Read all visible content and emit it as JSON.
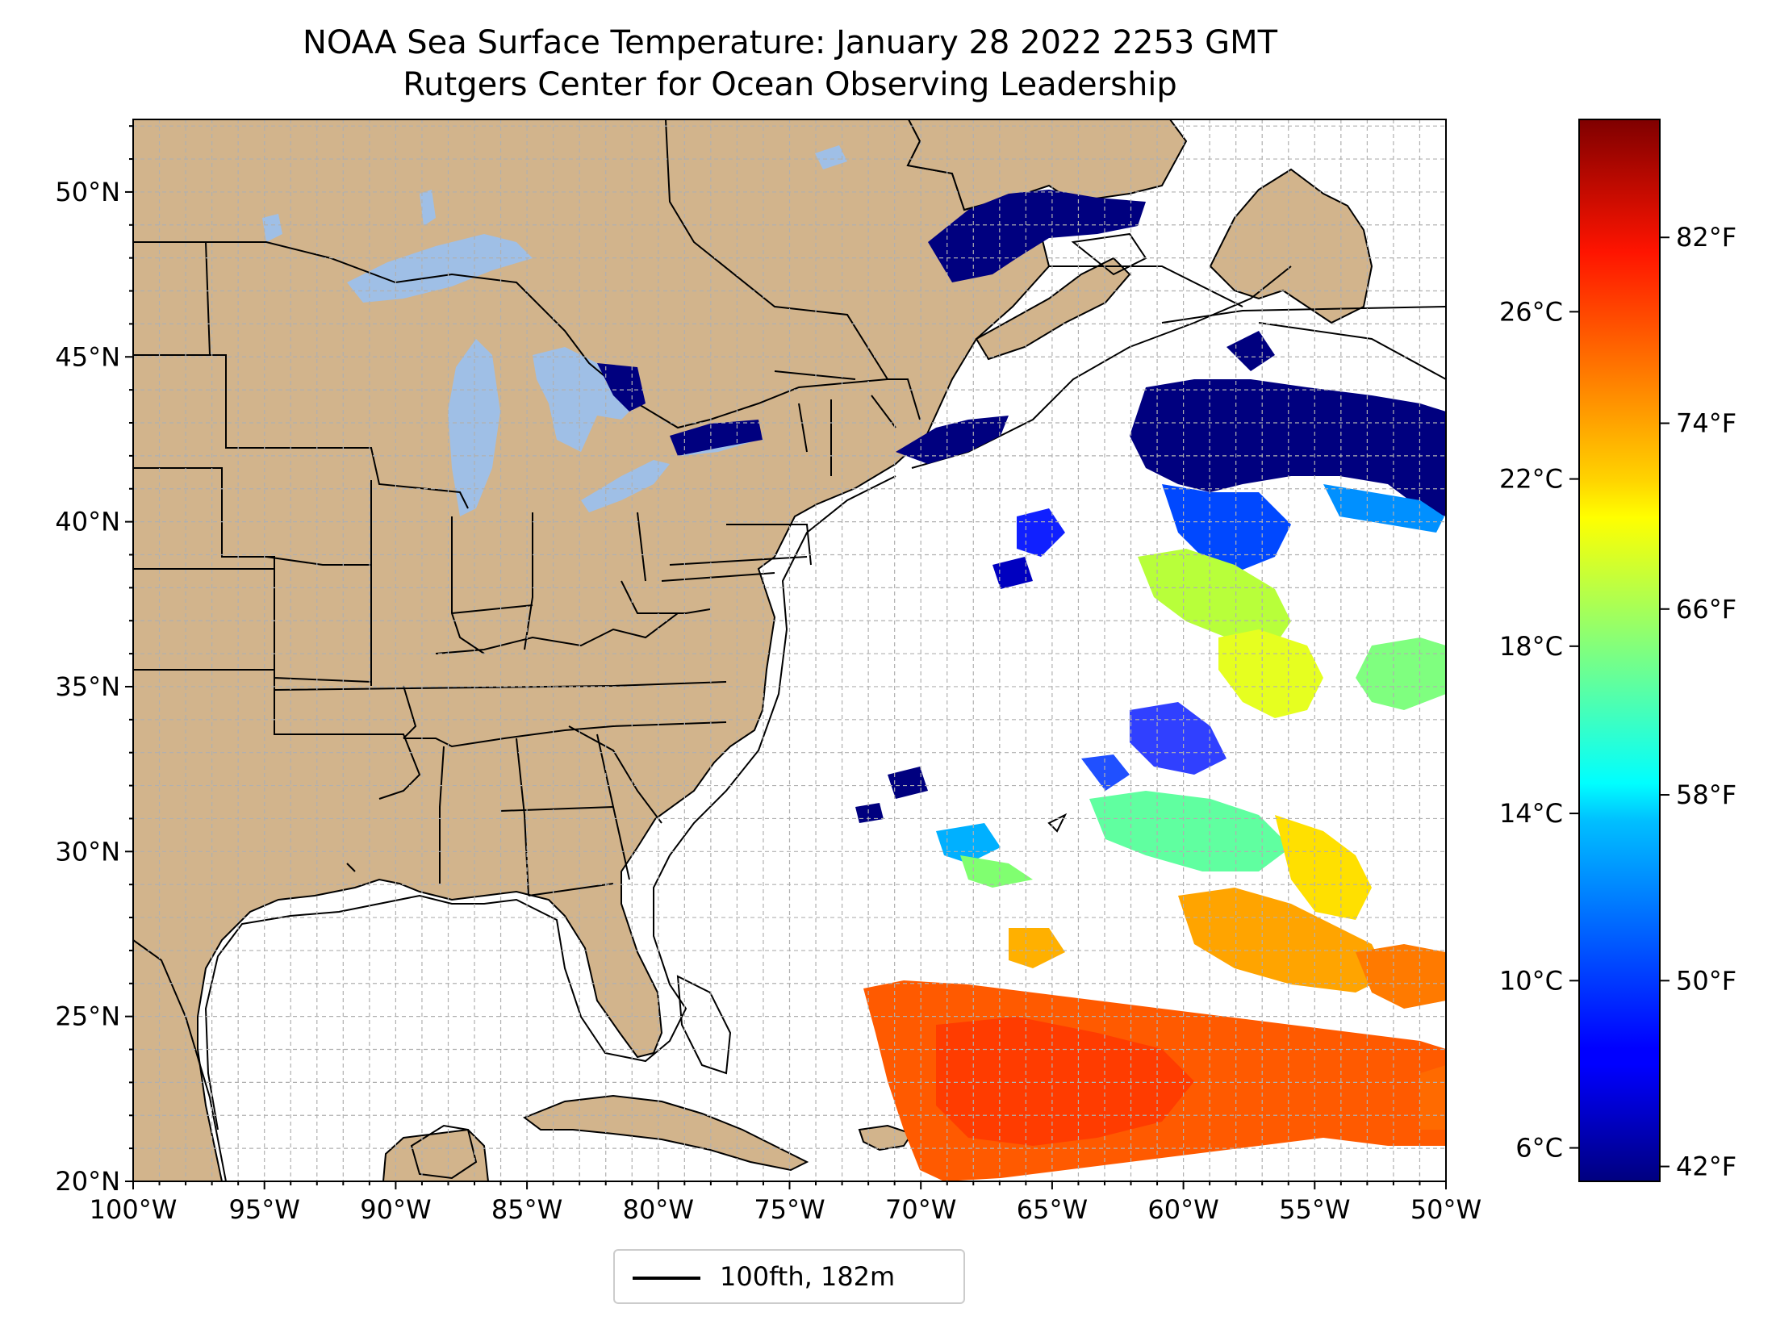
{
  "title": {
    "line1": "NOAA Sea Surface Temperature: January 28 2022 2253 GMT",
    "line2": "Rutgers Center for Ocean Observing Leadership"
  },
  "map": {
    "lon_range": [
      -100,
      -50
    ],
    "lat_range": [
      20,
      52.2
    ],
    "lat_ticks": [
      {
        "value": 20,
        "label": "20°N"
      },
      {
        "value": 25,
        "label": "25°N"
      },
      {
        "value": 30,
        "label": "30°N"
      },
      {
        "value": 35,
        "label": "35°N"
      },
      {
        "value": 40,
        "label": "40°N"
      },
      {
        "value": 45,
        "label": "45°N"
      },
      {
        "value": 50,
        "label": "50°N"
      }
    ],
    "lon_ticks": [
      {
        "value": -100,
        "label": "100°W"
      },
      {
        "value": -95,
        "label": "95°W"
      },
      {
        "value": -90,
        "label": "90°W"
      },
      {
        "value": -85,
        "label": "85°W"
      },
      {
        "value": -80,
        "label": "80°W"
      },
      {
        "value": -75,
        "label": "75°W"
      },
      {
        "value": -70,
        "label": "70°W"
      },
      {
        "value": -65,
        "label": "65°W"
      },
      {
        "value": -60,
        "label": "60°W"
      },
      {
        "value": -55,
        "label": "55°W"
      },
      {
        "value": -50,
        "label": "50°W"
      }
    ],
    "colors": {
      "land": "#d2b48c",
      "lakes": "#9fbfe6",
      "ocean_nodata": "#ffffff",
      "grid": "#b0b0b0",
      "borders": "#000000"
    }
  },
  "colorbar": {
    "colormap": "jet",
    "celsius_ticks": [
      {
        "value": 6,
        "label": "6°C"
      },
      {
        "value": 10,
        "label": "10°C"
      },
      {
        "value": 14,
        "label": "14°C"
      },
      {
        "value": 18,
        "label": "18°C"
      },
      {
        "value": 22,
        "label": "22°C"
      },
      {
        "value": 26,
        "label": "26°C"
      }
    ],
    "fahrenheit_ticks": [
      {
        "value": 42,
        "label": "42°F"
      },
      {
        "value": 50,
        "label": "50°F"
      },
      {
        "value": 58,
        "label": "58°F"
      },
      {
        "value": 66,
        "label": "66°F"
      },
      {
        "value": 74,
        "label": "74°F"
      },
      {
        "value": 82,
        "label": "82°F"
      }
    ]
  },
  "legend": {
    "label": "100fth, 182m"
  }
}
